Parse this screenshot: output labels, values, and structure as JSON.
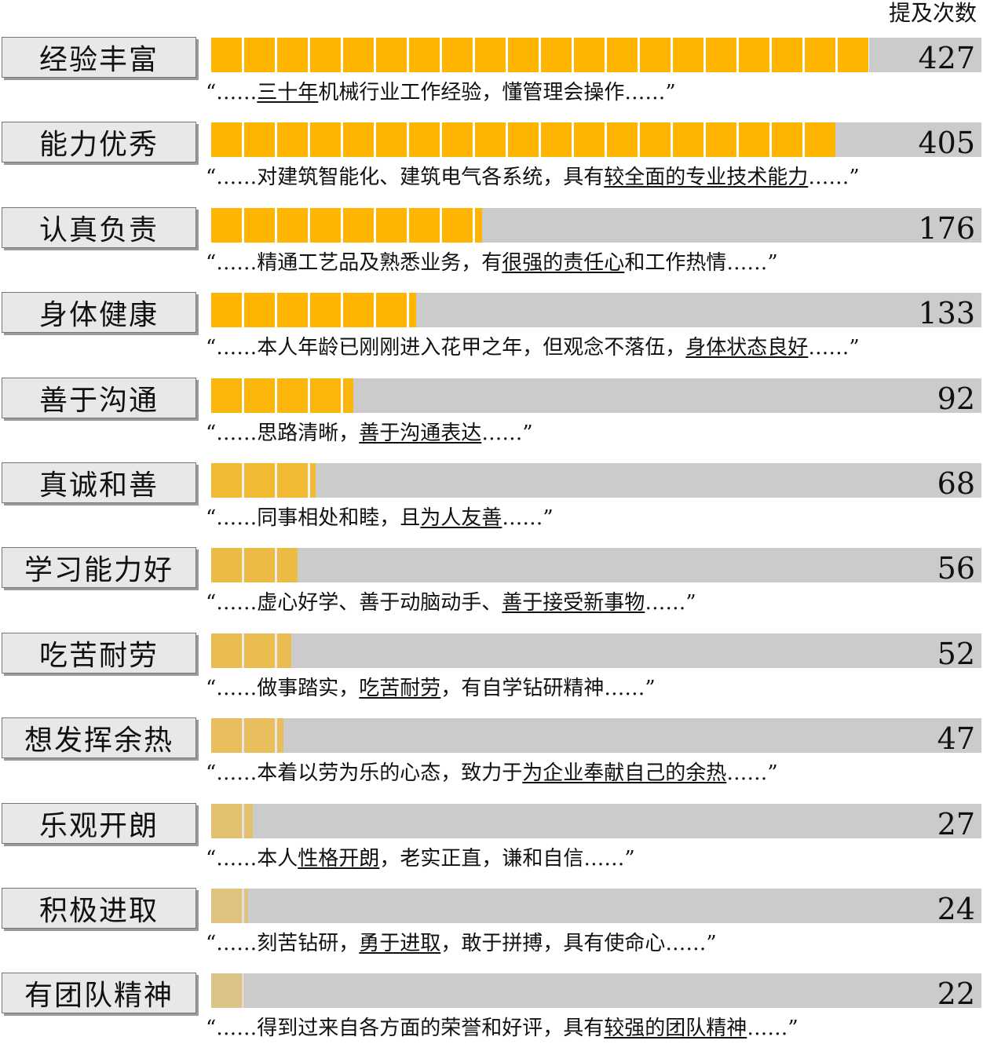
{
  "unit_title": "提及次数",
  "colors": {
    "bar": "#ffb400",
    "track": "#cbcbcb",
    "label_bg": "#e8e8e8"
  },
  "chart_data": {
    "type": "bar",
    "orientation": "horizontal",
    "title": "",
    "value_label": "提及次数",
    "categories": [
      "经验丰富",
      "能力优秀",
      "认真负责",
      "身体健康",
      "善于沟通",
      "真诚和善",
      "学习能力好",
      "吃苦耐劳",
      "想发挥余热",
      "乐观开朗",
      "积极进取",
      "有团队精神"
    ],
    "values": [
      427,
      405,
      176,
      133,
      92,
      68,
      56,
      52,
      47,
      27,
      24,
      22
    ],
    "xlim": [
      0,
      500
    ]
  },
  "rows": [
    {
      "label": "经验丰富",
      "count": "427",
      "quote": {
        "before": "“……",
        "highlight": "三十年",
        "after": "机械行业工作经验，懂管理会操作……”"
      }
    },
    {
      "label": "能力优秀",
      "count": "405",
      "quote": {
        "before": "“……对建筑智能化、建筑电气各系统，具有",
        "highlight": "较全面的专业技术能力",
        "after": "……”"
      }
    },
    {
      "label": "认真负责",
      "count": "176",
      "quote": {
        "before": "“……精通工艺品及熟悉业务，有",
        "highlight": "很强的责任心",
        "after": "和工作热情……”"
      }
    },
    {
      "label": "身体健康",
      "count": "133",
      "quote": {
        "before": "“……本人年龄已刚刚进入花甲之年，但观念不落伍，",
        "highlight": "身体状态良好",
        "after": "……”"
      }
    },
    {
      "label": "善于沟通",
      "count": "92",
      "quote": {
        "before": "“……思路清晰，",
        "highlight": "善于沟通表达",
        "after": "……”"
      }
    },
    {
      "label": "真诚和善",
      "count": "68",
      "quote": {
        "before": "“……同事相处和睦，且",
        "highlight": "为人友善",
        "after": "……”"
      }
    },
    {
      "label": "学习能力好",
      "count": "56",
      "quote": {
        "before": "“……虚心好学、善于动脑动手、",
        "highlight": "善于接受新事物",
        "after": "……”"
      }
    },
    {
      "label": "吃苦耐劳",
      "count": "52",
      "quote": {
        "before": "“……做事踏实，",
        "highlight": "吃苦耐劳",
        "after": "，有自学钻研精神……”"
      }
    },
    {
      "label": "想发挥余热",
      "count": "47",
      "quote": {
        "before": "“……本着以劳为乐的心态，致力于",
        "highlight": "为企业奉献自己的余热",
        "after": "……”"
      }
    },
    {
      "label": "乐观开朗",
      "count": "27",
      "quote": {
        "before": "“……本人",
        "highlight": "性格开朗",
        "after": "，老实正直，谦和自信……”"
      }
    },
    {
      "label": "积极进取",
      "count": "24",
      "quote": {
        "before": "“……刻苦钻研，",
        "highlight": "勇于进取",
        "after": "，敢于拼搏，具有使命心……”"
      }
    },
    {
      "label": "有团队精神",
      "count": "22",
      "quote": {
        "before": "“……得到过来自各方面的荣誉和好评，具有",
        "highlight": "较强的团队精神",
        "after": "……”"
      }
    }
  ]
}
